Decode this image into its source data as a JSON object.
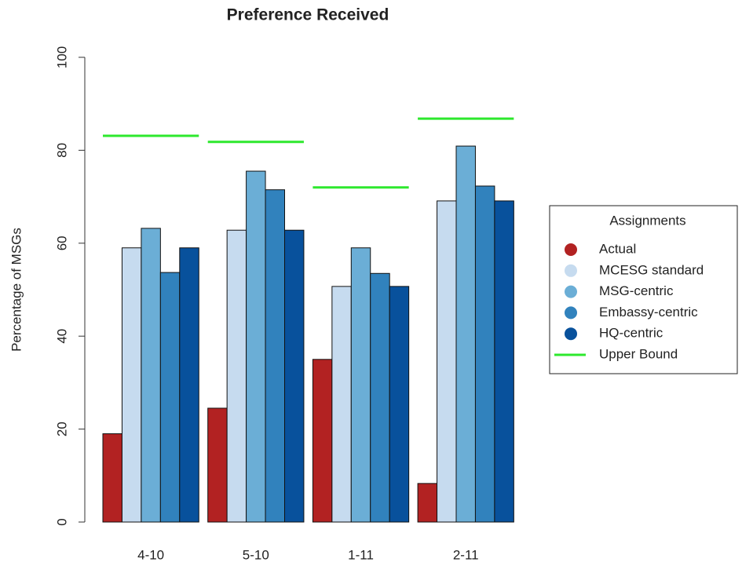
{
  "chart_data": {
    "type": "bar",
    "title": "Preference Received",
    "y_label": "Percentage of MSGs",
    "categories": [
      "4-10",
      "5-10",
      "1-11",
      "2-11"
    ],
    "series": [
      {
        "name": "Actual",
        "color": "#b22222",
        "values": [
          19,
          24.5,
          35,
          8.3
        ]
      },
      {
        "name": "MCESG standard",
        "color": "#c6dbef",
        "values": [
          59,
          62.8,
          50.7,
          69.1
        ]
      },
      {
        "name": "MSG-centric",
        "color": "#6baed6",
        "values": [
          63.2,
          75.5,
          59,
          80.9
        ]
      },
      {
        "name": "Embassy-centric",
        "color": "#3182bd",
        "values": [
          53.7,
          71.5,
          53.5,
          72.3
        ]
      },
      {
        "name": "HQ-centric",
        "color": "#08519c",
        "values": [
          59,
          62.8,
          50.7,
          69.1
        ]
      }
    ],
    "upper_bound": {
      "name": "Upper Bound",
      "color": "#2ee82e",
      "values": [
        83.1,
        81.8,
        72,
        86.8
      ]
    },
    "legend_title": "Assignments",
    "legend": "right",
    "ylim": [
      0,
      100
    ],
    "yticks": [
      0,
      20,
      40,
      60,
      80,
      100
    ]
  }
}
